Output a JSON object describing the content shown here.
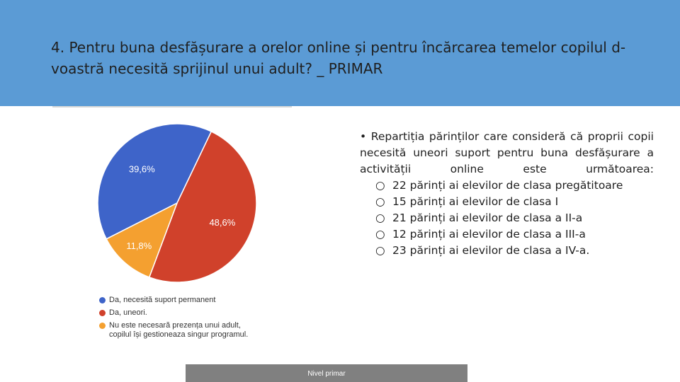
{
  "header": {
    "title": "4. Pentru buna desfășurare a orelor online și pentru încărcarea temelor copilul d-voastră necesită sprijinul unui adult? _ PRIMAR",
    "background_color": "#5b9bd5"
  },
  "chart_data": {
    "type": "pie",
    "slices": [
      {
        "label": "Da, necesită suport permanent",
        "value": 39.6,
        "display": "39,6%",
        "color": "#3e64c9"
      },
      {
        "label": "Da, uneori.",
        "value": 48.6,
        "display": "48,6%",
        "color": "#d0412b"
      },
      {
        "label": "Nu este necesară prezența unui adult,\ncopilul își gestioneaza singur programul.",
        "value": 11.8,
        "display": "11,8%",
        "color": "#f4a030"
      }
    ],
    "legend_position": "bottom-left"
  },
  "content": {
    "intro": "• Repartiția părinților care consideră că proprii copii necesită uneori suport pentru buna desfășurare a activității online este următoarea:",
    "bullet_symbol": "○",
    "items": [
      "22 părinți ai elevilor de clasa pregătitoare",
      "15 părinți ai elevilor de clasa I",
      "21 părinți ai elevilor de clasa a II-a",
      "12 părinți ai elevilor de clasa a III-a",
      "23 părinți ai elevilor de clasa a IV-a."
    ]
  },
  "footer": {
    "label": "Nivel primar",
    "background_color": "#808080"
  }
}
